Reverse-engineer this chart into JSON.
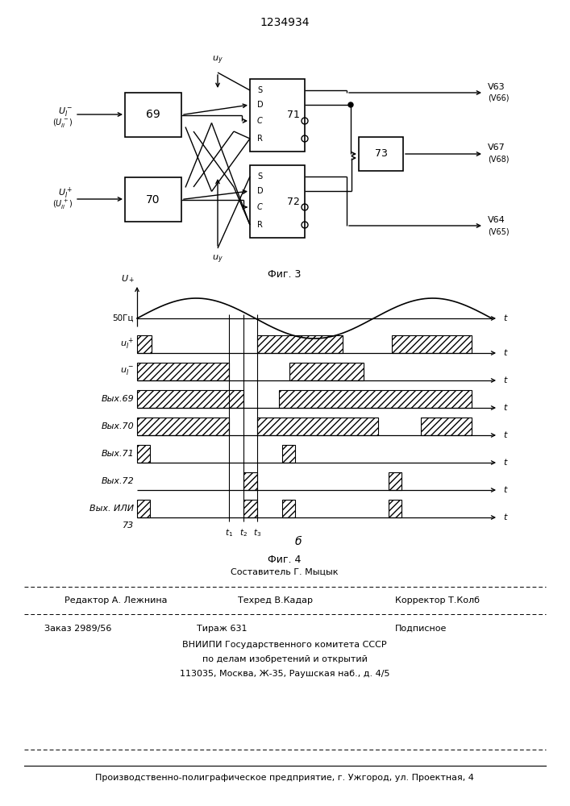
{
  "patent_number": "1234934",
  "fig3_caption": "Фиг. 3",
  "fig4_caption": "Фиг. 4",
  "fig4b_label": "б",
  "footer_line1_center": "Составитель Г. Мыцык",
  "footer_line2_left": "Редактор А. Лежнина",
  "footer_line2_mid": "Техред В.Кадар",
  "footer_line2_right": "Корректор Т.Колб",
  "footer_line3_left": "Заказ 2989/56",
  "footer_line3_mid": "Тираж 631",
  "footer_line3_right": "Подписное",
  "footer_line4": "ВНИИПИ Государственного комитета СССР",
  "footer_line5": "по делам изобретений и открытий",
  "footer_line6": "113035, Москва, Ж-35, Раушская наб., д. 4/5",
  "footer_line7": "Производственно-полиграфическое предприятие, г. Ужгород, ул. Проектная, 4",
  "bg_color": "#ffffff",
  "line_color": "#000000"
}
